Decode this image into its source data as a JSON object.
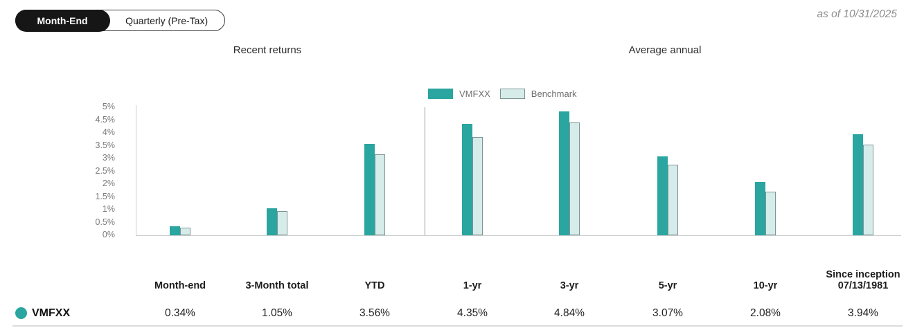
{
  "toggle": {
    "options": [
      {
        "label": "Month-End",
        "selected": true
      },
      {
        "label": "Quarterly (Pre-Tax)",
        "selected": false
      }
    ]
  },
  "as_of": "as of 10/31/2025",
  "chart_data": {
    "type": "bar",
    "title": "",
    "sections": [
      {
        "label": "Recent returns",
        "category_indices": [
          0,
          1,
          2
        ]
      },
      {
        "label": "Average annual",
        "category_indices": [
          3,
          4,
          5,
          6,
          7
        ]
      }
    ],
    "categories": [
      "Month-end",
      "3-Month total",
      "YTD",
      "1-yr",
      "3-yr",
      "5-yr",
      "10-yr",
      "Since inception 07/13/1981"
    ],
    "series": [
      {
        "name": "VMFXX",
        "color": "#2aa5a0",
        "values": [
          0.34,
          1.05,
          3.56,
          4.35,
          4.84,
          3.07,
          2.08,
          3.94
        ]
      },
      {
        "name": "Benchmark",
        "color": "#d6ecea",
        "border": "#7f9392",
        "values": [
          0.3,
          0.95,
          3.15,
          3.85,
          4.4,
          2.75,
          1.7,
          3.55
        ]
      }
    ],
    "ylim": [
      0,
      5
    ],
    "ytick_step": 0.5,
    "ytick_suffix": "%",
    "ytick_labels": [
      "0%",
      "0.5%",
      "1%",
      "1.5%",
      "2%",
      "2.5%",
      "3%",
      "3.5%",
      "4%",
      "4.5%",
      "5%"
    ],
    "legend_position": "top-center-right",
    "grid": false
  },
  "table": {
    "headers": [
      "Month-end",
      "3-Month total",
      "YTD",
      "1-yr",
      "3-yr",
      "5-yr",
      "10-yr",
      "Since inception\n07/13/1981"
    ],
    "rows": [
      {
        "label": "VMFXX",
        "dot_color": "#2aa5a0",
        "values": [
          "0.34%",
          "1.05%",
          "3.56%",
          "4.35%",
          "4.84%",
          "3.07%",
          "2.08%",
          "3.94%"
        ]
      }
    ]
  },
  "colors": {
    "accent_teal": "#2aa5a0",
    "benchmark_fill": "#d6ecea",
    "benchmark_border": "#7f9392",
    "axis_line": "#c9cfce",
    "divider_line": "#9b9b9b",
    "muted_text": "#7b7b7b"
  }
}
